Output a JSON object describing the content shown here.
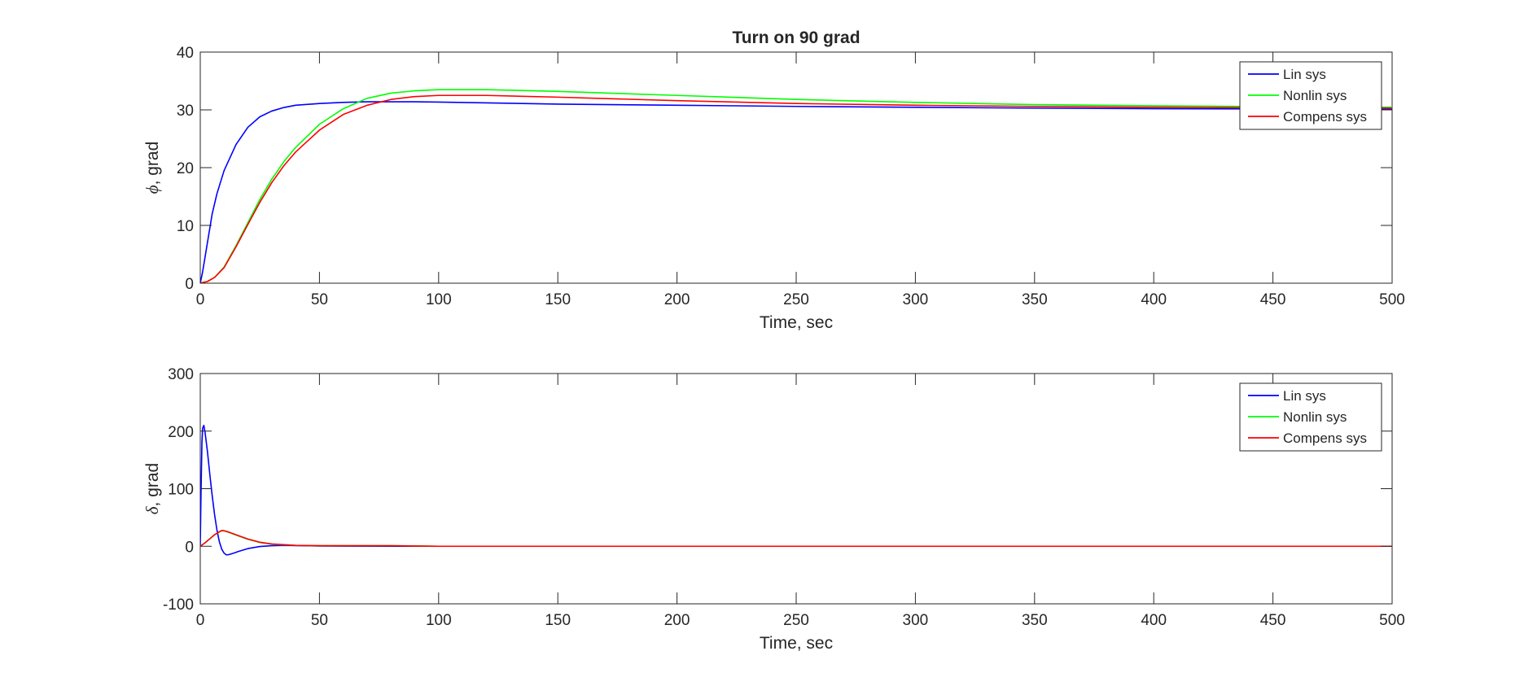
{
  "figure": {
    "background": "#ffffff"
  },
  "chart_data": [
    {
      "type": "line",
      "title": "Turn on 90 grad",
      "xlabel": "Time, sec",
      "ylabel_symbol": "ϕ",
      "ylabel_rest": ", grad",
      "xlim": [
        0,
        500
      ],
      "ylim": [
        0,
        40
      ],
      "xticks": [
        0,
        50,
        100,
        150,
        200,
        250,
        300,
        350,
        400,
        450,
        500
      ],
      "yticks": [
        0,
        10,
        20,
        30,
        40
      ],
      "grid": false,
      "legend_position": "top-right",
      "series": [
        {
          "name": "Lin sys",
          "color": "#0000ff",
          "points": [
            [
              0,
              0
            ],
            [
              1,
              2
            ],
            [
              2,
              4.5
            ],
            [
              3,
              7
            ],
            [
              5,
              12
            ],
            [
              7,
              15.5
            ],
            [
              10,
              19.5
            ],
            [
              15,
              24
            ],
            [
              20,
              27
            ],
            [
              25,
              28.8
            ],
            [
              30,
              29.8
            ],
            [
              35,
              30.4
            ],
            [
              40,
              30.8
            ],
            [
              50,
              31.1
            ],
            [
              60,
              31.3
            ],
            [
              70,
              31.4
            ],
            [
              80,
              31.4
            ],
            [
              90,
              31.4
            ],
            [
              100,
              31.35
            ],
            [
              150,
              31.0
            ],
            [
              200,
              30.8
            ],
            [
              250,
              30.6
            ],
            [
              300,
              30.45
            ],
            [
              350,
              30.3
            ],
            [
              400,
              30.2
            ],
            [
              450,
              30.15
            ],
            [
              500,
              30.1
            ]
          ]
        },
        {
          "name": "Nonlin sys",
          "color": "#00ff00",
          "points": [
            [
              0,
              0
            ],
            [
              3,
              0.3
            ],
            [
              6,
              1
            ],
            [
              10,
              2.8
            ],
            [
              15,
              6.5
            ],
            [
              20,
              10.5
            ],
            [
              25,
              14.5
            ],
            [
              30,
              18
            ],
            [
              35,
              21
            ],
            [
              40,
              23.5
            ],
            [
              50,
              27.5
            ],
            [
              60,
              30.2
            ],
            [
              70,
              32
            ],
            [
              80,
              32.9
            ],
            [
              90,
              33.3
            ],
            [
              100,
              33.5
            ],
            [
              120,
              33.5
            ],
            [
              150,
              33.2
            ],
            [
              200,
              32.5
            ],
            [
              250,
              31.8
            ],
            [
              300,
              31.3
            ],
            [
              350,
              30.9
            ],
            [
              400,
              30.7
            ],
            [
              450,
              30.55
            ],
            [
              500,
              30.45
            ]
          ]
        },
        {
          "name": "Compens sys",
          "color": "#ff0000",
          "points": [
            [
              0,
              0
            ],
            [
              3,
              0.3
            ],
            [
              6,
              1
            ],
            [
              10,
              2.7
            ],
            [
              15,
              6.3
            ],
            [
              20,
              10.2
            ],
            [
              25,
              14
            ],
            [
              30,
              17.4
            ],
            [
              35,
              20.3
            ],
            [
              40,
              22.7
            ],
            [
              50,
              26.5
            ],
            [
              60,
              29.2
            ],
            [
              70,
              30.8
            ],
            [
              80,
              31.8
            ],
            [
              90,
              32.3
            ],
            [
              100,
              32.5
            ],
            [
              120,
              32.5
            ],
            [
              150,
              32.2
            ],
            [
              200,
              31.6
            ],
            [
              250,
              31.1
            ],
            [
              300,
              30.8
            ],
            [
              350,
              30.6
            ],
            [
              400,
              30.45
            ],
            [
              450,
              30.35
            ],
            [
              500,
              30.3
            ]
          ]
        }
      ]
    },
    {
      "type": "line",
      "title": "",
      "xlabel": "Time, sec",
      "ylabel_symbol": "δ",
      "ylabel_rest": ", grad",
      "xlim": [
        0,
        500
      ],
      "ylim": [
        -100,
        300
      ],
      "xticks": [
        0,
        50,
        100,
        150,
        200,
        250,
        300,
        350,
        400,
        450,
        500
      ],
      "yticks": [
        -100,
        0,
        100,
        200,
        300
      ],
      "grid": false,
      "legend_position": "top-right",
      "series": [
        {
          "name": "Lin sys",
          "color": "#0000ff",
          "points": [
            [
              0,
              0
            ],
            [
              0.3,
              90
            ],
            [
              0.7,
              180
            ],
            [
              1,
              205
            ],
            [
              1.5,
              210
            ],
            [
              2,
              198
            ],
            [
              3,
              165
            ],
            [
              4,
              125
            ],
            [
              5,
              88
            ],
            [
              6,
              55
            ],
            [
              7,
              28
            ],
            [
              8,
              8
            ],
            [
              9,
              -5
            ],
            [
              10,
              -12
            ],
            [
              11,
              -15
            ],
            [
              12,
              -14.5
            ],
            [
              14,
              -12
            ],
            [
              16,
              -9
            ],
            [
              20,
              -4
            ],
            [
              25,
              -0.5
            ],
            [
              30,
              1
            ],
            [
              35,
              1.5
            ],
            [
              40,
              1.2
            ],
            [
              45,
              0.8
            ],
            [
              50,
              0.5
            ],
            [
              60,
              0.2
            ],
            [
              80,
              0.1
            ],
            [
              100,
              0
            ],
            [
              500,
              0
            ]
          ]
        },
        {
          "name": "Nonlin sys",
          "color": "#00ff00",
          "points": [
            [
              0,
              0
            ],
            [
              2,
              6
            ],
            [
              4,
              13
            ],
            [
              6,
              20
            ],
            [
              8,
              25
            ],
            [
              9,
              27
            ],
            [
              10,
              26.5
            ],
            [
              12,
              24
            ],
            [
              15,
              19.5
            ],
            [
              20,
              12
            ],
            [
              25,
              6.5
            ],
            [
              30,
              3.5
            ],
            [
              40,
              1.5
            ],
            [
              50,
              1
            ],
            [
              60,
              1
            ],
            [
              70,
              1
            ],
            [
              80,
              1
            ],
            [
              90,
              0.5
            ],
            [
              100,
              0
            ],
            [
              500,
              0
            ]
          ]
        },
        {
          "name": "Compens sys",
          "color": "#ff0000",
          "points": [
            [
              0,
              0
            ],
            [
              2,
              6
            ],
            [
              4,
              13
            ],
            [
              6,
              20
            ],
            [
              8,
              25
            ],
            [
              9,
              27.5
            ],
            [
              10,
              27
            ],
            [
              12,
              24.5
            ],
            [
              15,
              20
            ],
            [
              20,
              12.5
            ],
            [
              25,
              7
            ],
            [
              30,
              4
            ],
            [
              40,
              1.5
            ],
            [
              50,
              1
            ],
            [
              60,
              1
            ],
            [
              70,
              1
            ],
            [
              80,
              1
            ],
            [
              90,
              0.5
            ],
            [
              100,
              0
            ],
            [
              500,
              0
            ]
          ]
        }
      ]
    }
  ]
}
